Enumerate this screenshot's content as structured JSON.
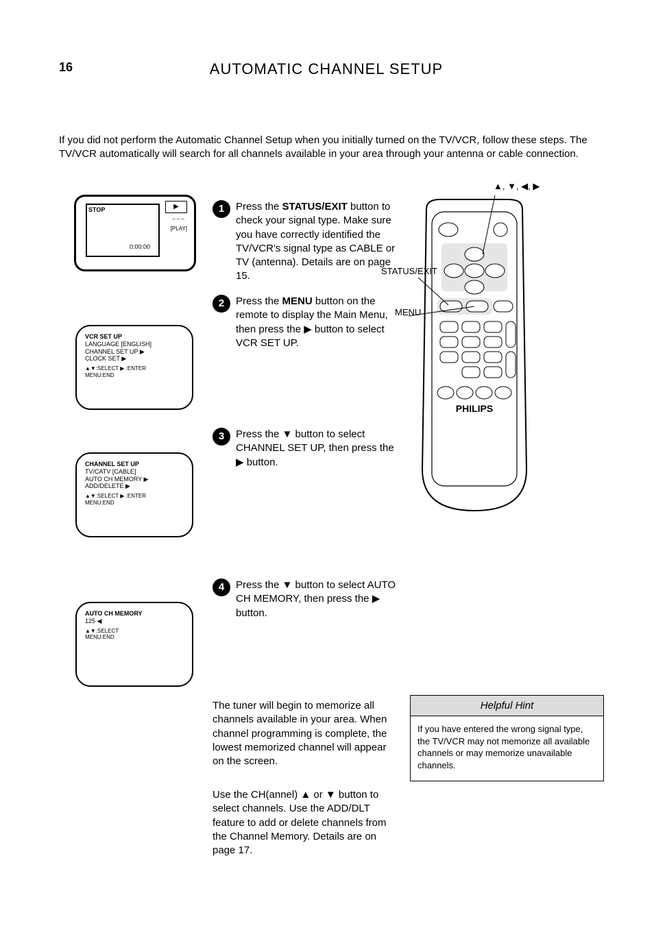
{
  "page_number": "16",
  "title": "AUTOMATIC CHANNEL SETUP",
  "intro": "If you did not perform the Automatic Channel Setup when you initially turned on the TV/VCR, follow these steps. The TV/VCR automatically will search for all channels available in your area through your antenna or cable connection.",
  "remote_labels": {
    "arrows": "▲, ▼, ◀, ▶",
    "status": "STATUS/EXIT",
    "menu": "MENU"
  },
  "steps": [
    {
      "num": "1",
      "body_html": "Press the <b>STATUS/EXIT</b> button to check your signal type. Make sure you have correctly identified the TV/VCR's signal type as CABLE or TV (antenna). Details are on page 15."
    },
    {
      "num": "2",
      "body_html": "Press the <b>MENU</b> button on the remote to display the Main Menu, then press the ▶ button to select VCR SET UP."
    },
    {
      "num": "3",
      "body_html": "Press the <b>▼</b> button to select CHANNEL SET UP, then press the ▶ button."
    },
    {
      "num": "4",
      "body_html": "Press the <b>▼</b> button to select AUTO CH MEMORY, then press the ▶ button."
    }
  ],
  "after": {
    "p1": "The tuner will begin to memorize all channels available in your area. When channel programming is complete, the lowest memorized channel will appear on the screen.",
    "p2_html": "Use the CH(annel) ▲ or ▼ button to select channels. Use the ADD/DLT feature to add or delete channels from the Channel Memory. Details are on page 17."
  },
  "tip": {
    "header": "Helpful Hint",
    "body": "If you have entered the wrong signal type, the TV/VCR may not memorize all available channels or may memorize unavailable channels."
  },
  "screens": {
    "s1": {
      "stop": "STOP",
      "zero": "0:00:00",
      "play": "▶",
      "pip": "– – –",
      "plabel": "[PLAY]"
    },
    "s2": {
      "hdr": "VCR SET UP",
      "rows": [
        "LANGUAGE          [ENGLISH]",
        "CHANNEL SET UP            ▶",
        "CLOCK SET                 ▶"
      ],
      "sel": "▲▼:SELECT   ▶ :ENTER",
      "end": "MENU:END"
    },
    "s3": {
      "hdr": "CHANNEL SET UP",
      "rows": [
        "TV/CATV           [CABLE]",
        "AUTO CH MEMORY           ▶",
        "ADD/DELETE               ▶"
      ],
      "sel": "▲▼:SELECT   ▶ :ENTER",
      "end": "MENU:END"
    },
    "s4": {
      "hdr": "AUTO CH MEMORY",
      "rows": [
        "",
        "        125   ◀"
      ],
      "sel": "▲▼:SELECT",
      "end": "MENU:END"
    }
  },
  "style": {
    "page_bg": "#ffffff",
    "tip_hdr_bg": "#dcdcdc",
    "text_color": "#000000",
    "title_fontsize": 22,
    "body_fontsize": 15,
    "screen_fontsize": 9,
    "border_radius": 22
  }
}
